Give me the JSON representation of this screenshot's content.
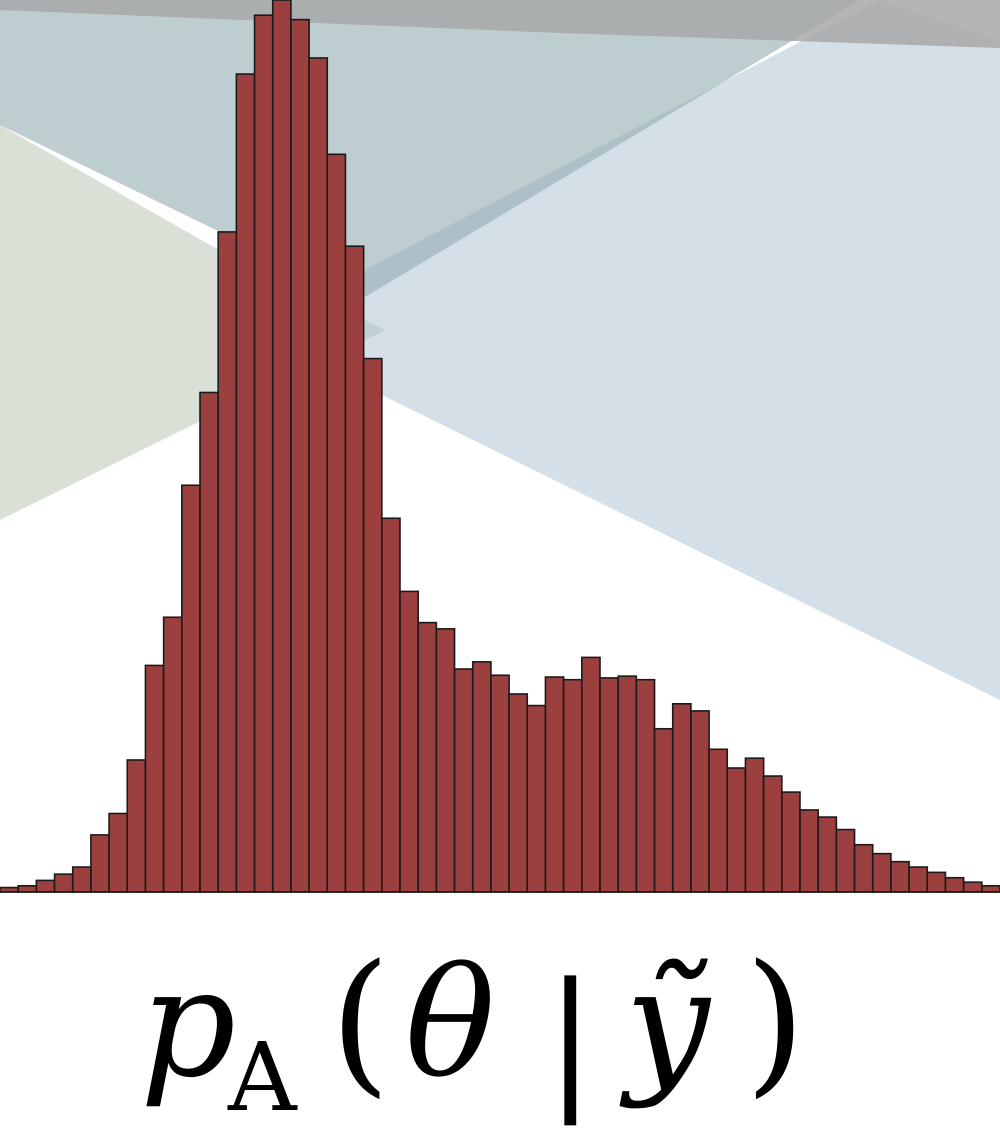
{
  "chart_data": {
    "type": "bar",
    "title": "",
    "xlabel": "",
    "ylabel": "",
    "ylim": [
      0,
      1
    ],
    "grid": false,
    "legend": "none",
    "values": [
      0.005,
      0.007,
      0.013,
      0.02,
      0.028,
      0.064,
      0.088,
      0.148,
      0.254,
      0.308,
      0.456,
      0.56,
      0.74,
      0.917,
      0.983,
      1.0,
      0.978,
      0.935,
      0.827,
      0.724,
      0.598,
      0.419,
      0.337,
      0.302,
      0.295,
      0.25,
      0.258,
      0.243,
      0.222,
      0.209,
      0.241,
      0.238,
      0.263,
      0.24,
      0.242,
      0.238,
      0.183,
      0.211,
      0.203,
      0.16,
      0.139,
      0.15,
      0.13,
      0.112,
      0.092,
      0.084,
      0.07,
      0.053,
      0.043,
      0.034,
      0.028,
      0.022,
      0.016,
      0.011,
      0.007
    ]
  },
  "label": {
    "p": "p",
    "subscript": "A",
    "open_paren": "(",
    "theta": "θ",
    "bar": "|",
    "y_tilde": "ỹ",
    "close_paren": ")"
  },
  "colors": {
    "bar_fill": "#9c3f3f",
    "bar_stroke": "#1a1a1a",
    "background_gray": "#a8a8a8",
    "background_teal": "#93acb0",
    "background_blue": "#a9bfd2",
    "background_green": "#bfcdbc"
  }
}
